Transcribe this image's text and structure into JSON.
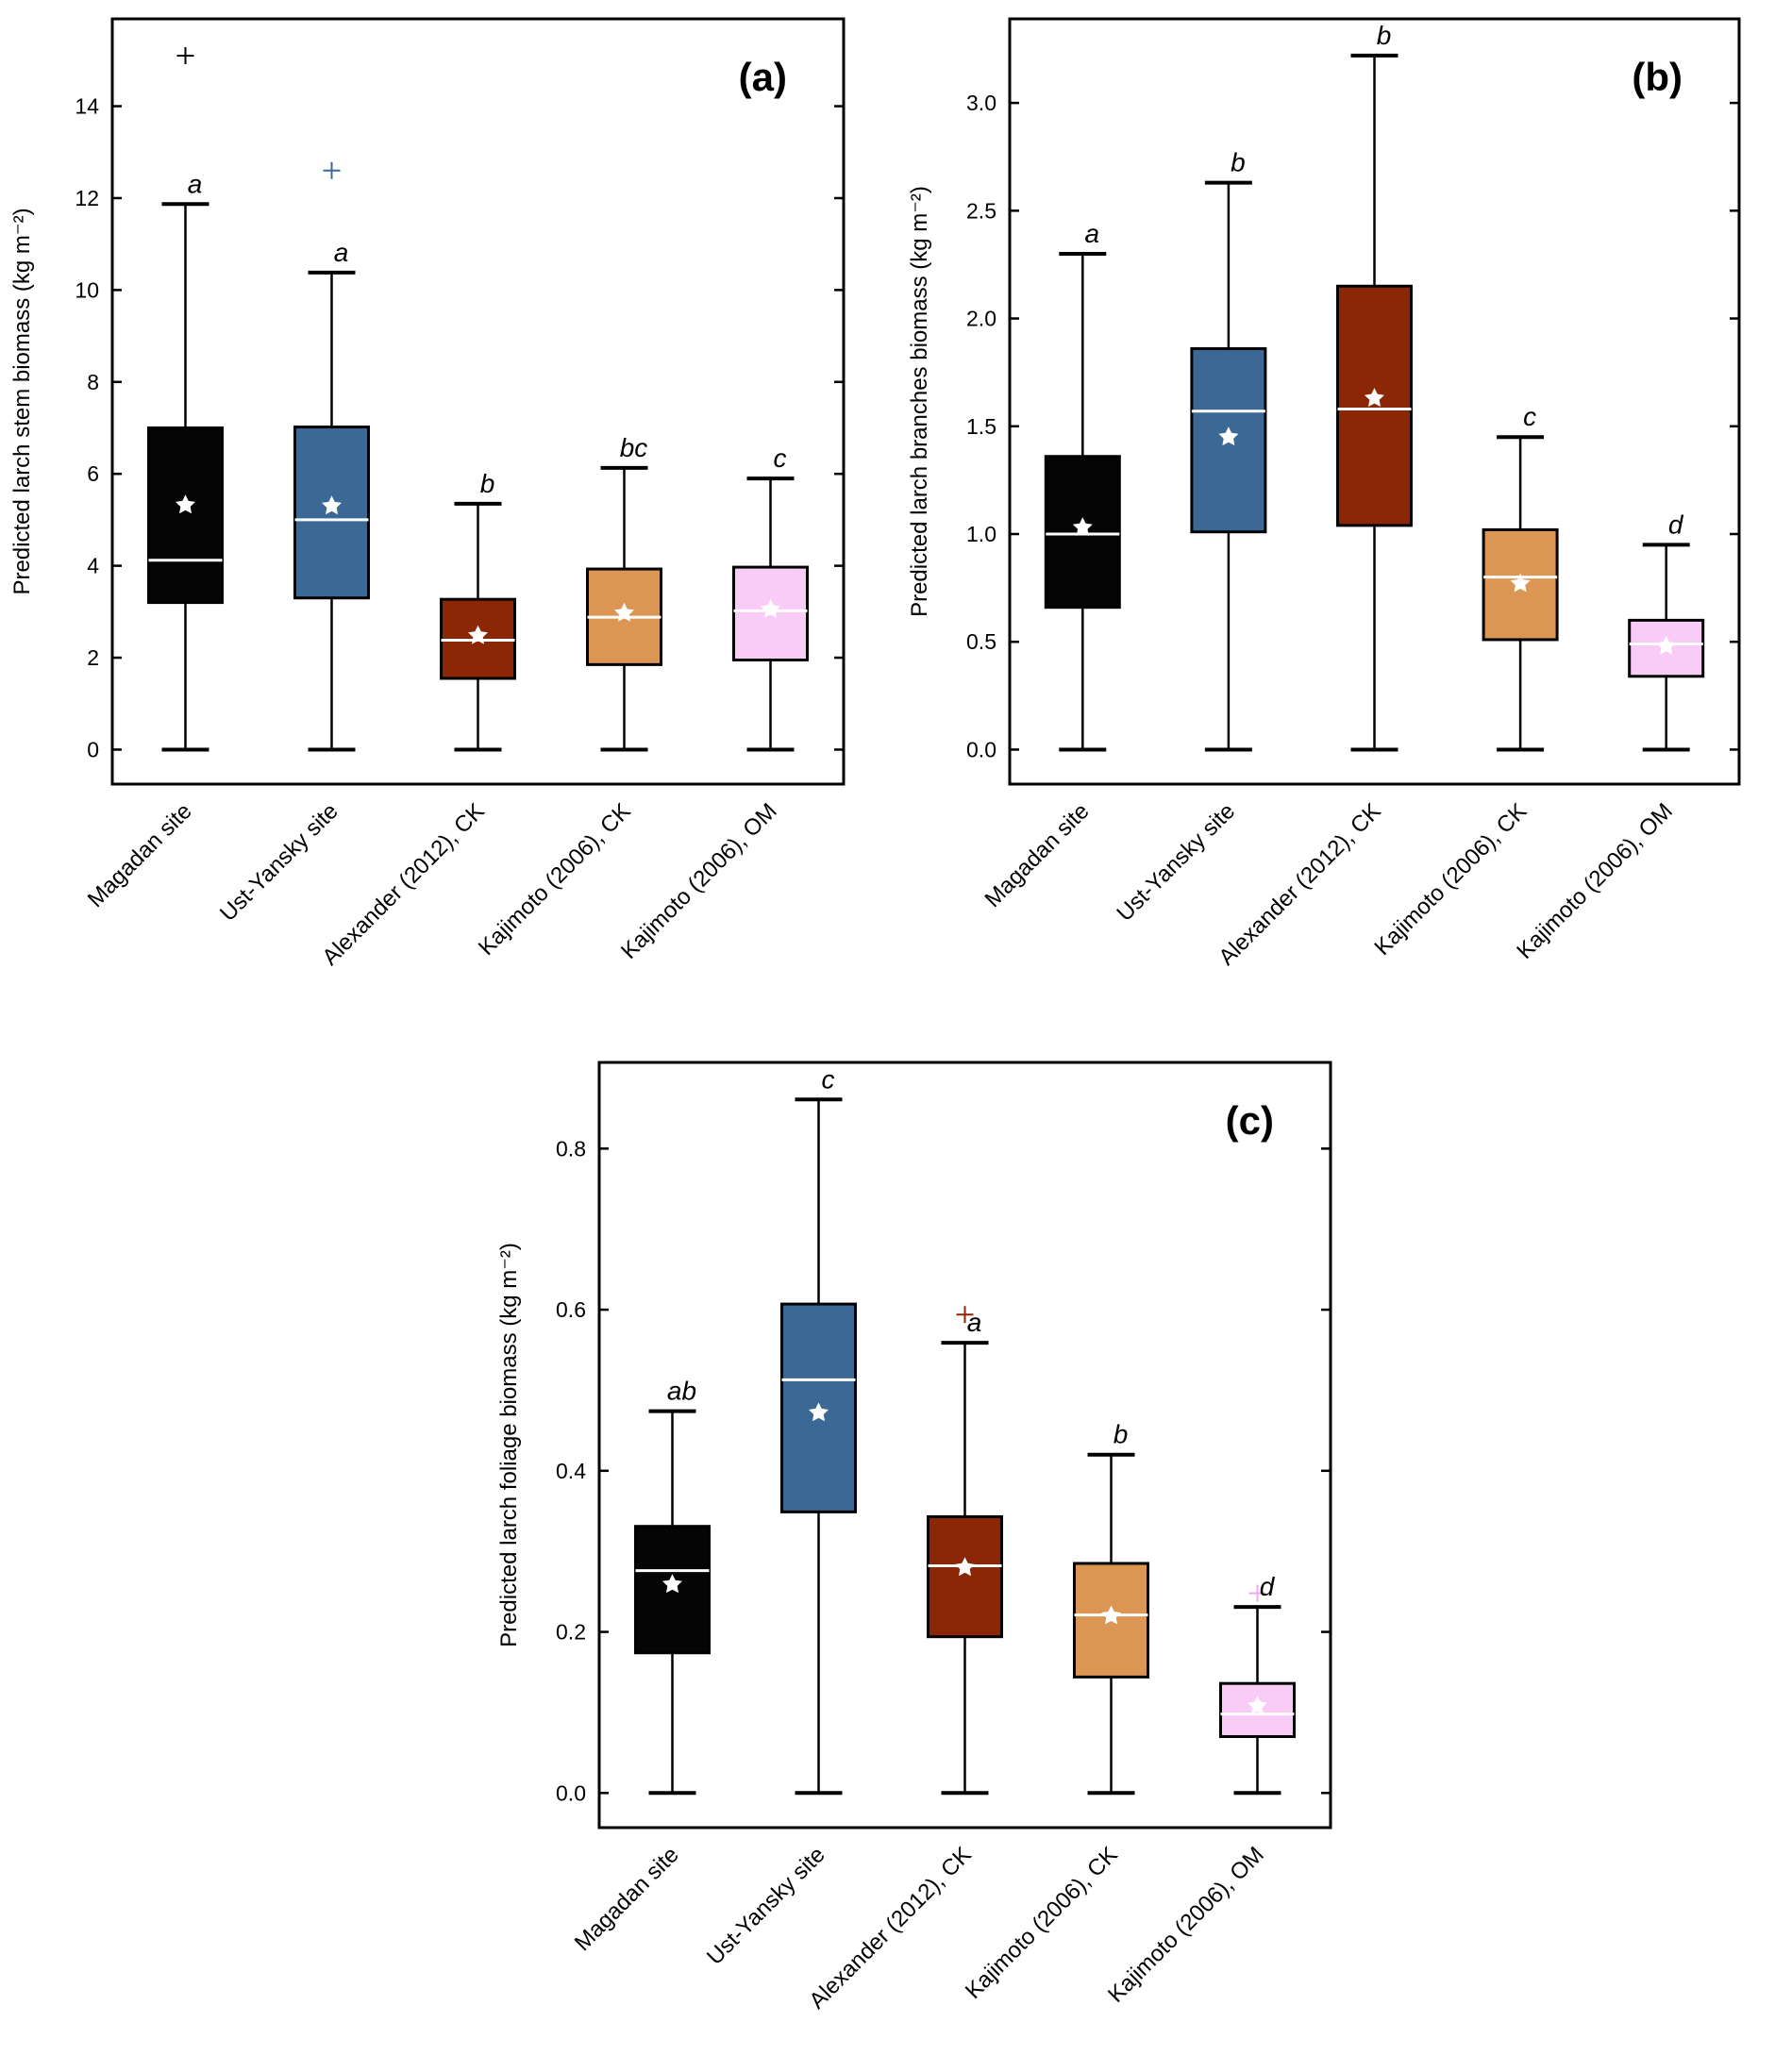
{
  "chart_data": [
    {
      "type": "box",
      "panel_label": "(a)",
      "ylabel": "Predicted larch stem biomass (kg m⁻²)",
      "ylim": [
        -0.75,
        15.9
      ],
      "yticks": [
        0,
        2,
        4,
        6,
        8,
        10,
        12,
        14
      ],
      "ytick_labels": [
        "0",
        "2",
        "4",
        "6",
        "8",
        "10",
        "12",
        "14"
      ],
      "categories": [
        "Magadan site",
        "Ust-Yansky site",
        "Alexander (2012), CK",
        "Kajimoto (2006), CK",
        "Kajimoto (2006), OM"
      ],
      "boxes": [
        {
          "low": 0,
          "q1": 3.2,
          "median": 4.12,
          "q3": 7.0,
          "high": 11.87,
          "mean": 5.32,
          "outliers": [
            15.1
          ],
          "letter": "a"
        },
        {
          "low": 0,
          "q1": 3.3,
          "median": 5.0,
          "q3": 7.02,
          "high": 10.38,
          "mean": 5.3,
          "outliers": [
            12.6
          ],
          "letter": "a"
        },
        {
          "low": 0,
          "q1": 1.55,
          "median": 2.38,
          "q3": 3.27,
          "high": 5.35,
          "mean": 2.48,
          "outliers": [],
          "letter": "b"
        },
        {
          "low": 0,
          "q1": 1.85,
          "median": 2.88,
          "q3": 3.93,
          "high": 6.13,
          "mean": 2.97,
          "outliers": [],
          "letter": "bc"
        },
        {
          "low": 0,
          "q1": 1.95,
          "median": 3.02,
          "q3": 3.97,
          "high": 5.9,
          "mean": 3.05,
          "outliers": [],
          "letter": "c"
        }
      ]
    },
    {
      "type": "box",
      "panel_label": "(b)",
      "ylabel": "Predicted larch branches biomass (kg m⁻²)",
      "ylim": [
        -0.16,
        3.39
      ],
      "yticks": [
        0,
        0.5,
        1.0,
        1.5,
        2.0,
        2.5,
        3.0
      ],
      "ytick_labels": [
        "0.0",
        "0.5",
        "1.0",
        "1.5",
        "2.0",
        "2.5",
        "3.0"
      ],
      "categories": [
        "Magadan site",
        "Ust-Yansky site",
        "Alexander (2012), CK",
        "Kajimoto (2006), CK",
        "Kajimoto (2006), OM"
      ],
      "boxes": [
        {
          "low": 0,
          "q1": 0.66,
          "median": 1.0,
          "q3": 1.36,
          "high": 2.3,
          "mean": 1.03,
          "outliers": [],
          "letter": "a"
        },
        {
          "low": 0,
          "q1": 1.01,
          "median": 1.57,
          "q3": 1.86,
          "high": 2.63,
          "mean": 1.45,
          "outliers": [],
          "letter": "b"
        },
        {
          "low": 0,
          "q1": 1.04,
          "median": 1.58,
          "q3": 2.15,
          "high": 3.22,
          "mean": 1.63,
          "outliers": [],
          "letter": "b"
        },
        {
          "low": 0,
          "q1": 0.51,
          "median": 0.8,
          "q3": 1.02,
          "high": 1.45,
          "mean": 0.77,
          "outliers": [],
          "letter": "c"
        },
        {
          "low": 0,
          "q1": 0.34,
          "median": 0.49,
          "q3": 0.6,
          "high": 0.95,
          "mean": 0.48,
          "outliers": [],
          "letter": "d"
        }
      ]
    },
    {
      "type": "box",
      "panel_label": "(c)",
      "ylabel": "Predicted larch foliage biomass (kg m⁻²)",
      "ylim": [
        -0.043,
        0.907
      ],
      "yticks": [
        0,
        0.2,
        0.4,
        0.6,
        0.8
      ],
      "ytick_labels": [
        "0.0",
        "0.2",
        "0.4",
        "0.6",
        "0.8"
      ],
      "categories": [
        "Magadan site",
        "Ust-Yansky site",
        "Alexander (2012), CK",
        "Kajimoto (2006), CK",
        "Kajimoto (2006), OM"
      ],
      "boxes": [
        {
          "low": 0,
          "q1": 0.174,
          "median": 0.276,
          "q3": 0.331,
          "high": 0.474,
          "mean": 0.259,
          "outliers": [],
          "letter": "ab"
        },
        {
          "low": 0,
          "q1": 0.349,
          "median": 0.513,
          "q3": 0.607,
          "high": 0.861,
          "mean": 0.472,
          "outliers": [],
          "letter": "c"
        },
        {
          "low": 0,
          "q1": 0.194,
          "median": 0.282,
          "q3": 0.343,
          "high": 0.559,
          "mean": 0.28,
          "outliers": [
            0.594
          ],
          "letter": "a"
        },
        {
          "low": 0,
          "q1": 0.144,
          "median": 0.221,
          "q3": 0.285,
          "high": 0.42,
          "mean": 0.22,
          "outliers": [],
          "letter": "b"
        },
        {
          "low": 0,
          "q1": 0.07,
          "median": 0.098,
          "q3": 0.136,
          "high": 0.231,
          "mean": 0.108,
          "outliers": [
            0.248
          ],
          "letter": "d"
        }
      ]
    }
  ],
  "colors": [
    "#050505",
    "#3c6896",
    "#8b2705",
    "#dc9654",
    "#f9ccf8"
  ],
  "outlier_colors": [
    "#000000",
    "#3c6896",
    "#8b2705",
    "#dc9654",
    "#f0a8ee"
  ]
}
